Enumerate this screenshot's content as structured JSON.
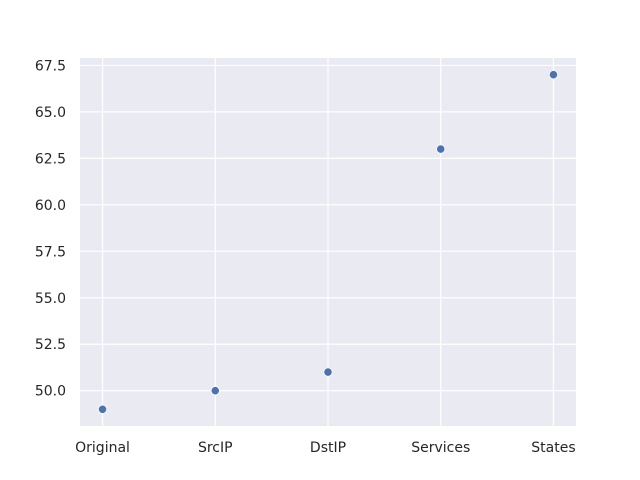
{
  "chart_data": {
    "type": "scatter",
    "title": "",
    "xlabel": "",
    "ylabel": "",
    "categories": [
      "Original",
      "SrcIP",
      "DstIP",
      "Services",
      "States"
    ],
    "series": [
      {
        "values": [
          49,
          50,
          51,
          63,
          67
        ],
        "color": "#4c72b0"
      }
    ],
    "ylim": [
      48.1,
      67.9
    ],
    "yticks": [
      50.0,
      52.5,
      55.0,
      57.5,
      60.0,
      62.5,
      65.0,
      67.5
    ],
    "ytick_labels": [
      "50.0",
      "52.5",
      "55.0",
      "57.5",
      "60.0",
      "62.5",
      "65.0",
      "67.5"
    ],
    "grid": true,
    "style": {
      "plot_background": "#eaeaf2",
      "grid_color": "#ffffff"
    }
  }
}
